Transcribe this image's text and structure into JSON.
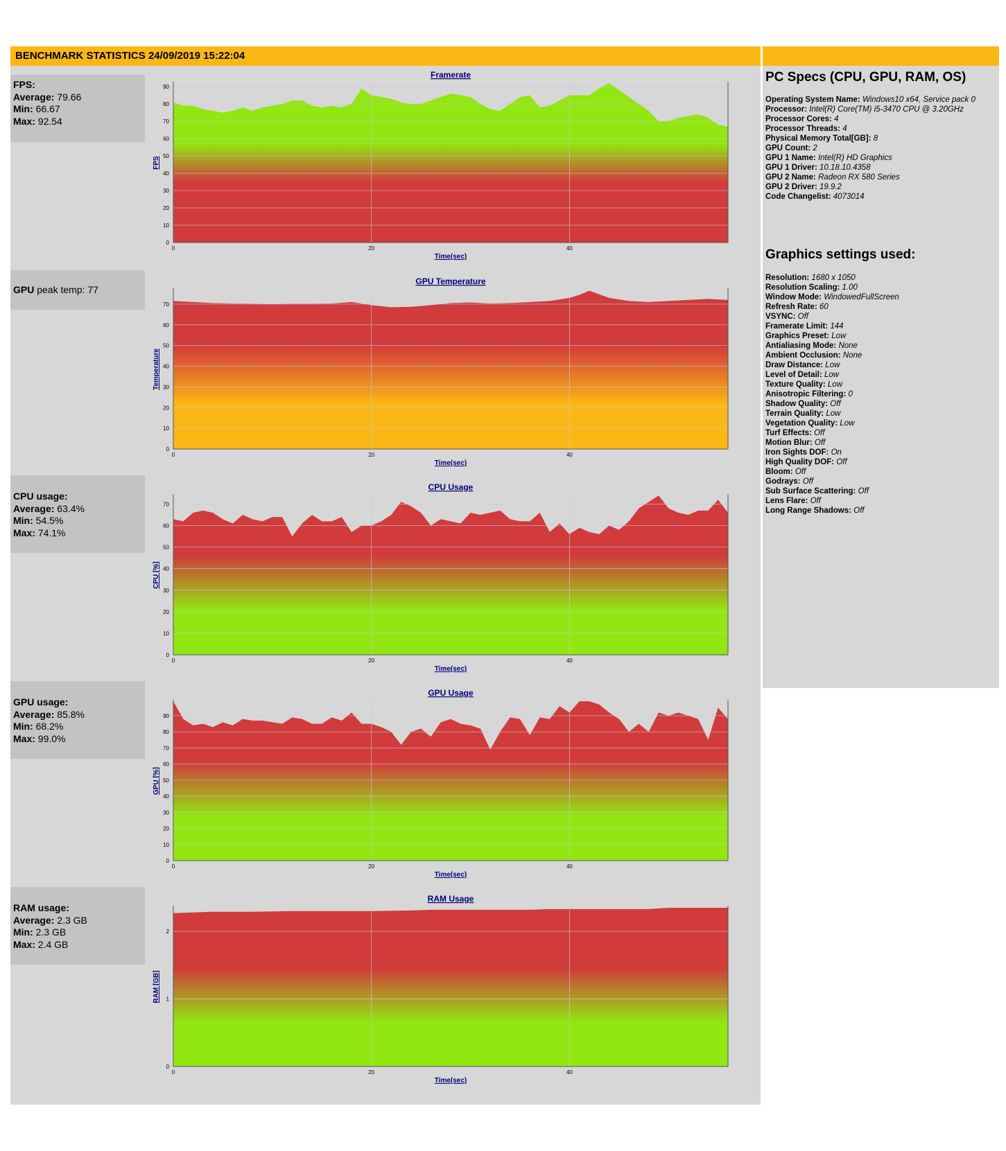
{
  "header": {
    "title": "BENCHMARK STATISTICS 24/09/2019 15:22:04"
  },
  "stats": {
    "fps": {
      "label": "FPS:",
      "avg_label": "Average:",
      "avg": "79.66",
      "min_label": "Min:",
      "min": "66.67",
      "max_label": "Max:",
      "max": "92.54"
    },
    "gpu_temp": {
      "label": "GPU",
      "text": "peak temp: 77"
    },
    "cpu": {
      "label": "CPU usage:",
      "avg_label": "Average:",
      "avg": "63.4%",
      "min_label": "Min:",
      "min": "54.5%",
      "max_label": "Max:",
      "max": "74.1%"
    },
    "gpu": {
      "label": "GPU usage:",
      "avg_label": "Average:",
      "avg": "85.8%",
      "min_label": "Min:",
      "min": "68.2%",
      "max_label": "Max:",
      "max": "99.0%"
    },
    "ram": {
      "label": "RAM usage:",
      "avg_label": "Average:",
      "avg": "2.3 GB",
      "min_label": "Min:",
      "min": "2.3 GB",
      "max_label": "Max:",
      "max": "2.4 GB"
    }
  },
  "pc_specs": {
    "title": "PC Specs (CPU, GPU, RAM, OS)",
    "items": [
      {
        "k": "Operating System Name:",
        "v": "Windows10 x64, Service pack 0"
      },
      {
        "k": "Processor:",
        "v": "Intel(R) Core(TM) i5-3470 CPU @ 3.20GHz"
      },
      {
        "k": "Processor Cores:",
        "v": "4"
      },
      {
        "k": "Processor Threads:",
        "v": "4"
      },
      {
        "k": "Physical Memory Total[GB]:",
        "v": "8"
      },
      {
        "k": "GPU Count:",
        "v": "2"
      },
      {
        "k": "GPU 1 Name:",
        "v": "Intel(R) HD Graphics"
      },
      {
        "k": "GPU 1 Driver:",
        "v": "10.18.10.4358"
      },
      {
        "k": "GPU 2 Name:",
        "v": "Radeon RX 580 Series"
      },
      {
        "k": "GPU 2 Driver:",
        "v": "19.9.2"
      },
      {
        "k": "Code Changelist:",
        "v": "4073014"
      }
    ]
  },
  "graphics_settings": {
    "title": "Graphics settings used:",
    "items": [
      {
        "k": "Resolution:",
        "v": "1680 x 1050"
      },
      {
        "k": "Resolution Scaling:",
        "v": "1.00"
      },
      {
        "k": "Window Mode:",
        "v": "WindowedFullScreen"
      },
      {
        "k": "Refresh Rate:",
        "v": "60"
      },
      {
        "k": "VSYNC:",
        "v": "Off"
      },
      {
        "k": "Framerate Limit:",
        "v": "144"
      },
      {
        "k": "Graphics Preset:",
        "v": "Low"
      },
      {
        "k": "Antialiasing Mode:",
        "v": "None"
      },
      {
        "k": "Ambient Occlusion:",
        "v": "None"
      },
      {
        "k": "Draw Distance:",
        "v": "Low"
      },
      {
        "k": "Level of Detail:",
        "v": "Low"
      },
      {
        "k": "Texture Quality:",
        "v": "Low"
      },
      {
        "k": "Anisotropic Filtering:",
        "v": "0"
      },
      {
        "k": "Shadow Quality:",
        "v": "Off"
      },
      {
        "k": "Terrain Quality:",
        "v": "Low"
      },
      {
        "k": "Vegetation Quality:",
        "v": "Low"
      },
      {
        "k": "Turf Effects:",
        "v": "Off"
      },
      {
        "k": "Motion Blur:",
        "v": "Off"
      },
      {
        "k": "Iron Sights DOF:",
        "v": "On"
      },
      {
        "k": "High Quality DOF:",
        "v": "Off"
      },
      {
        "k": "Bloom:",
        "v": "Off"
      },
      {
        "k": "Godrays:",
        "v": "Off"
      },
      {
        "k": "Sub Surface Scattering:",
        "v": "Off"
      },
      {
        "k": "Lens Flare:",
        "v": "Off"
      },
      {
        "k": "Long Range Shadows:",
        "v": "Off"
      }
    ]
  },
  "colors": {
    "header": "#fbb714",
    "panel": "#d7d7d7",
    "statbox": "#c3c3c3",
    "red": "#d13b3b",
    "green": "#92e611",
    "orange": "#fbb714"
  },
  "chart_data": [
    {
      "type": "area",
      "title": "Framerate",
      "xlabel": "Time(sec)",
      "ylabel": "FPS",
      "xlim": [
        0,
        56
      ],
      "ylim": [
        0,
        92
      ],
      "xticks": [
        0,
        20,
        40
      ],
      "xtick_labels": [
        "0",
        "20",
        "40"
      ],
      "yticks": [
        0,
        10,
        20,
        30,
        40,
        50,
        60,
        70,
        80,
        90
      ],
      "ytick_labels": [
        "0",
        "10",
        "20",
        "30",
        "40",
        "50",
        "60",
        "70",
        "80",
        "90"
      ],
      "fill": "green-top",
      "x": [
        0,
        1,
        2,
        3,
        4,
        5,
        6,
        7,
        8,
        9,
        10,
        11,
        12,
        13,
        14,
        15,
        16,
        17,
        18,
        19,
        20,
        21,
        22,
        23,
        24,
        25,
        26,
        27,
        28,
        29,
        30,
        31,
        32,
        33,
        34,
        35,
        36,
        37,
        38,
        39,
        40,
        41,
        42,
        43,
        44,
        45,
        46,
        47,
        48,
        49,
        50,
        51,
        52,
        53,
        54,
        55,
        56
      ],
      "values": [
        81,
        79,
        79,
        77,
        76,
        75,
        76,
        78,
        76,
        78,
        79,
        80,
        82,
        82,
        79,
        78,
        79,
        78,
        80,
        89,
        85,
        84,
        83,
        81,
        80,
        80,
        82,
        84,
        86,
        85,
        84,
        80,
        77,
        76,
        80,
        84,
        85,
        78,
        79,
        82,
        85,
        85,
        85,
        89,
        92,
        88,
        84,
        80,
        76,
        70,
        70,
        72,
        73,
        74,
        72,
        68,
        67
      ]
    },
    {
      "type": "area",
      "title": "GPU Temperature",
      "xlabel": "Time(sec)",
      "ylabel": "Temperature",
      "xlim": [
        0,
        56
      ],
      "ylim": [
        0,
        77
      ],
      "xticks": [
        0,
        20,
        40
      ],
      "xtick_labels": [
        "0",
        "20",
        "40"
      ],
      "yticks": [
        0,
        10,
        20,
        30,
        40,
        50,
        60,
        70
      ],
      "ytick_labels": [
        "0",
        "10",
        "20",
        "30",
        "40",
        "50",
        "60",
        "70"
      ],
      "fill": "red-orange",
      "x": [
        0,
        2,
        4,
        6,
        8,
        10,
        12,
        14,
        16,
        18,
        20,
        22,
        24,
        26,
        28,
        30,
        32,
        34,
        36,
        38,
        40,
        41,
        42,
        44,
        46,
        48,
        50,
        52,
        54,
        56
      ],
      "values": [
        71.5,
        71,
        70.5,
        70.3,
        70.2,
        70.1,
        70.2,
        70.2,
        70.3,
        71,
        69.5,
        68.5,
        68.7,
        69.5,
        70.5,
        70.8,
        70.3,
        70.5,
        71,
        71.5,
        73,
        74.5,
        76.5,
        73,
        71.5,
        71,
        71.5,
        72,
        72.5,
        72
      ]
    },
    {
      "type": "area",
      "title": "CPU Usage",
      "xlabel": "Time(sec)",
      "ylabel": "CPU [%]",
      "xlim": [
        0,
        56
      ],
      "ylim": [
        0,
        74
      ],
      "xticks": [
        0,
        20,
        40
      ],
      "xtick_labels": [
        "0",
        "20",
        "40"
      ],
      "yticks": [
        0,
        10,
        20,
        30,
        40,
        50,
        60,
        70
      ],
      "ytick_labels": [
        "0",
        "10",
        "20",
        "30",
        "40",
        "50",
        "60",
        "70"
      ],
      "fill": "red-green",
      "x": [
        0,
        1,
        2,
        3,
        4,
        5,
        6,
        7,
        8,
        9,
        10,
        11,
        12,
        13,
        14,
        15,
        16,
        17,
        18,
        19,
        20,
        21,
        22,
        23,
        24,
        25,
        26,
        27,
        28,
        29,
        30,
        31,
        32,
        33,
        34,
        35,
        36,
        37,
        38,
        39,
        40,
        41,
        42,
        43,
        44,
        45,
        46,
        47,
        48,
        49,
        50,
        51,
        52,
        53,
        54,
        55,
        56
      ],
      "values": [
        63,
        62,
        66,
        67,
        66,
        63,
        61,
        65,
        63,
        62,
        64,
        64,
        55,
        61,
        65,
        62,
        62,
        64,
        57,
        60,
        60,
        62,
        65,
        71,
        69,
        66,
        60,
        63,
        62,
        61,
        66,
        65,
        66,
        67,
        63,
        62,
        62,
        66,
        57,
        61,
        56,
        59,
        57,
        56,
        60,
        58,
        62,
        68,
        71,
        74,
        68,
        66,
        65,
        67,
        67,
        72,
        66
      ]
    },
    {
      "type": "area",
      "title": "GPU Usage",
      "xlabel": "Time(sec)",
      "ylabel": "GPU [%]",
      "xlim": [
        0,
        56
      ],
      "ylim": [
        0,
        99
      ],
      "xticks": [
        0,
        20,
        40
      ],
      "xtick_labels": [
        "0",
        "20",
        "40"
      ],
      "yticks": [
        0,
        10,
        20,
        30,
        40,
        50,
        60,
        70,
        80,
        90
      ],
      "ytick_labels": [
        "0",
        "10",
        "20",
        "30",
        "40",
        "50",
        "60",
        "70",
        "80",
        "90"
      ],
      "fill": "red-green",
      "x": [
        0,
        1,
        2,
        3,
        4,
        5,
        6,
        7,
        8,
        9,
        10,
        11,
        12,
        13,
        14,
        15,
        16,
        17,
        18,
        19,
        20,
        21,
        22,
        23,
        24,
        25,
        26,
        27,
        28,
        29,
        30,
        31,
        32,
        33,
        34,
        35,
        36,
        37,
        38,
        39,
        40,
        41,
        42,
        43,
        44,
        45,
        46,
        47,
        48,
        49,
        50,
        51,
        52,
        53,
        54,
        55,
        56
      ],
      "values": [
        99,
        88,
        84,
        85,
        83,
        86,
        84,
        88,
        87,
        87,
        86,
        85,
        89,
        88,
        85,
        85,
        89,
        87,
        92,
        85,
        85,
        83,
        80,
        72,
        80,
        82,
        77,
        86,
        88,
        85,
        84,
        82,
        69,
        80,
        89,
        88,
        78,
        89,
        88,
        96,
        92,
        99,
        99,
        97,
        92,
        88,
        80,
        85,
        80,
        92,
        90,
        92,
        90,
        88,
        75,
        95,
        88
      ]
    },
    {
      "type": "area",
      "title": "RAM Usage",
      "xlabel": "Time(sec)",
      "ylabel": "RAM [GB]",
      "xlim": [
        0,
        56
      ],
      "ylim": [
        0,
        2.36
      ],
      "xticks": [
        0,
        20,
        40
      ],
      "xtick_labels": [
        "0",
        "20",
        "40"
      ],
      "yticks": [
        0,
        1,
        2
      ],
      "ytick_labels": [
        "0",
        "1",
        "2"
      ],
      "fill": "red-green",
      "x": [
        0,
        4,
        8,
        12,
        16,
        20,
        24,
        26,
        30,
        32,
        36,
        38,
        40,
        44,
        48,
        50,
        52,
        56
      ],
      "values": [
        2.27,
        2.29,
        2.29,
        2.3,
        2.3,
        2.3,
        2.31,
        2.32,
        2.32,
        2.32,
        2.32,
        2.33,
        2.33,
        2.33,
        2.33,
        2.35,
        2.35,
        2.35
      ]
    }
  ]
}
